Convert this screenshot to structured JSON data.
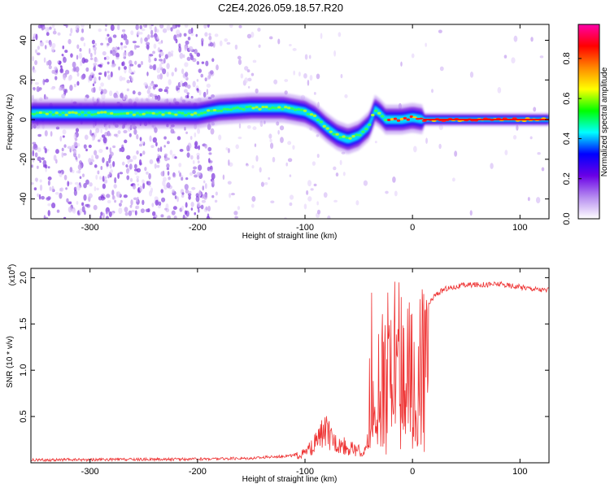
{
  "title": "C2E4.2026.059.18.57.R20",
  "chart_data": [
    {
      "type": "heatmap",
      "name": "spectrogram",
      "xlabel": "Height of straight line (km)",
      "ylabel": "Frequency (Hz)",
      "xlim": [
        -355,
        127
      ],
      "ylim": [
        -50,
        48
      ],
      "x_ticks": [
        -300,
        -200,
        -100,
        0,
        100
      ],
      "y_ticks": [
        -40,
        -20,
        0,
        20,
        40
      ],
      "colorbar": {
        "label": "Normalized spectral amplitude",
        "range": [
          0.0,
          0.97
        ],
        "ticks": [
          0.0,
          0.2,
          0.4,
          0.6,
          0.8
        ],
        "colors": [
          "#ffffff",
          "#b68cf0",
          "#6a00e6",
          "#0000ff",
          "#00ffff",
          "#00ff00",
          "#ffff00",
          "#ff8800",
          "#ff0000",
          "#ff00aa"
        ]
      },
      "ridge": {
        "x": [
          -355,
          -300,
          -250,
          -200,
          -180,
          -150,
          -120,
          -100,
          -90,
          -80,
          -70,
          -60,
          -50,
          -40,
          -35,
          -30,
          -25,
          -20,
          -10,
          0,
          10,
          50,
          127
        ],
        "y": [
          3,
          3,
          3,
          3,
          5,
          6,
          6,
          4,
          1,
          -4,
          -8,
          -10,
          -8,
          -3,
          5,
          3,
          0,
          0,
          0,
          1,
          0,
          0,
          0
        ]
      }
    },
    {
      "type": "line",
      "name": "snr",
      "xlabel": "Height of straight line (km)",
      "ylabel": "SNR (10 * v/v)",
      "y_multiplier": "(x10",
      "y_exponent": "4",
      "xlim": [
        -355,
        127
      ],
      "ylim": [
        0,
        2.1
      ],
      "x_ticks": [
        -300,
        -200,
        -100,
        0,
        100
      ],
      "y_ticks": [
        0.5,
        1.0,
        1.5,
        2.0
      ],
      "y_tick_labels": [
        "0.5",
        "1.0",
        "1.5",
        "2.0"
      ],
      "color": "#ee3333",
      "envelope": {
        "x": [
          -355,
          -200,
          -150,
          -110,
          -100,
          -95,
          -90,
          -85,
          -80,
          -75,
          -70,
          -60,
          -50,
          -45,
          -40,
          -35,
          -30,
          -25,
          -20,
          -15,
          -10,
          -5,
          0,
          10,
          20,
          30,
          50,
          80,
          100,
          127
        ],
        "y": [
          0.03,
          0.04,
          0.05,
          0.08,
          0.12,
          0.18,
          0.25,
          0.35,
          0.4,
          0.3,
          0.25,
          0.2,
          0.15,
          0.12,
          0.5,
          1.0,
          1.3,
          1.6,
          1.75,
          1.7,
          1.6,
          1.45,
          1.45,
          1.6,
          1.8,
          1.88,
          1.92,
          1.93,
          1.9,
          1.86
        ]
      }
    }
  ]
}
